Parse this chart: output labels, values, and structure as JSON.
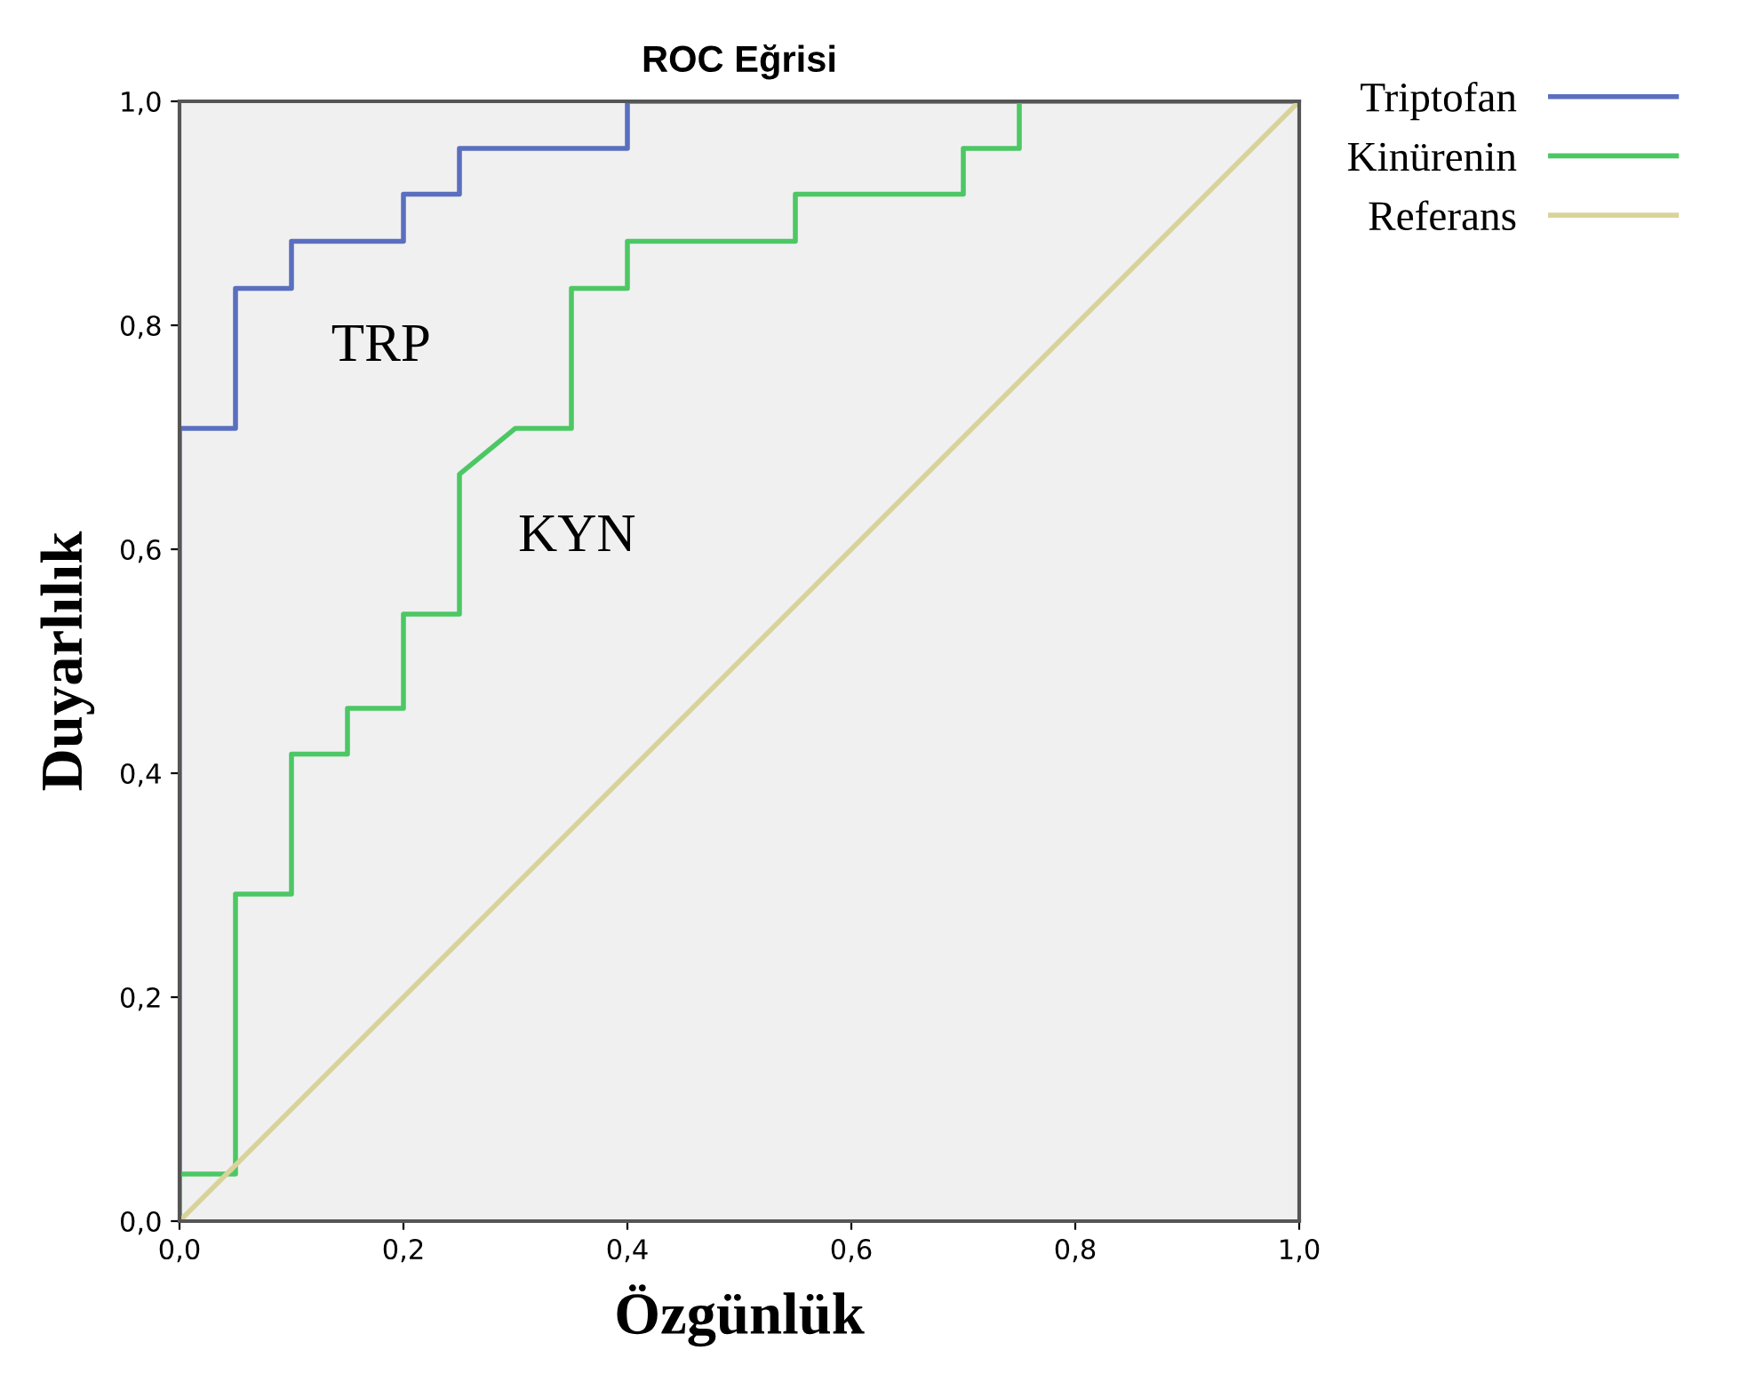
{
  "chart_data": {
    "type": "line",
    "title": "ROC Eğrisi",
    "xlabel": "Özgünlük",
    "ylabel": "Duyarlılık",
    "series": [
      {
        "name": "Triptofan",
        "color": "#5b6fbf",
        "x": [
          0,
          0,
          0.05,
          0.05,
          0.1,
          0.1,
          0.2,
          0.2,
          0.25,
          0.25,
          0.4,
          0.4,
          1.0
        ],
        "values": [
          0,
          0.708,
          0.708,
          0.833,
          0.833,
          0.875,
          0.875,
          0.917,
          0.917,
          0.958,
          0.958,
          1.0,
          1.0
        ]
      },
      {
        "name": "Kinürenin",
        "color": "#4cc764",
        "x": [
          0,
          0,
          0.05,
          0.05,
          0.1,
          0.1,
          0.15,
          0.15,
          0.2,
          0.2,
          0.25,
          0.25,
          0.3,
          0.35,
          0.35,
          0.4,
          0.4,
          0.55,
          0.55,
          0.7,
          0.7,
          0.75,
          0.75,
          1.0
        ],
        "values": [
          0,
          0.042,
          0.042,
          0.292,
          0.292,
          0.417,
          0.417,
          0.458,
          0.458,
          0.542,
          0.542,
          0.667,
          0.708,
          0.708,
          0.833,
          0.833,
          0.875,
          0.875,
          0.917,
          0.917,
          0.958,
          0.958,
          1.0,
          1.0
        ]
      },
      {
        "name": "Referans",
        "color": "#d9d39b",
        "x": [
          0,
          1.0
        ],
        "values": [
          0,
          1.0
        ]
      }
    ],
    "annotations": [
      "TRP",
      "KYN"
    ],
    "xlim": [
      0,
      1.0
    ],
    "ylim": [
      0,
      1.0
    ],
    "xticks": [
      {
        "value": 0,
        "label": "0,0"
      },
      {
        "value": 0.2,
        "label": "0,2"
      },
      {
        "value": 0.4,
        "label": "0,4"
      },
      {
        "value": 0.6,
        "label": "0,6"
      },
      {
        "value": 0.8,
        "label": "0,8"
      },
      {
        "value": 1.0,
        "label": "1,0"
      }
    ],
    "yticks": [
      {
        "value": 0,
        "label": "0,0"
      },
      {
        "value": 0.2,
        "label": "0,2"
      },
      {
        "value": 0.4,
        "label": "0,4"
      },
      {
        "value": 0.6,
        "label": "0,6"
      },
      {
        "value": 0.8,
        "label": "0,8"
      },
      {
        "value": 1.0,
        "label": "1,0"
      }
    ],
    "grid": false,
    "legend": "top right",
    "marker": "none",
    "line_style": "solid"
  }
}
